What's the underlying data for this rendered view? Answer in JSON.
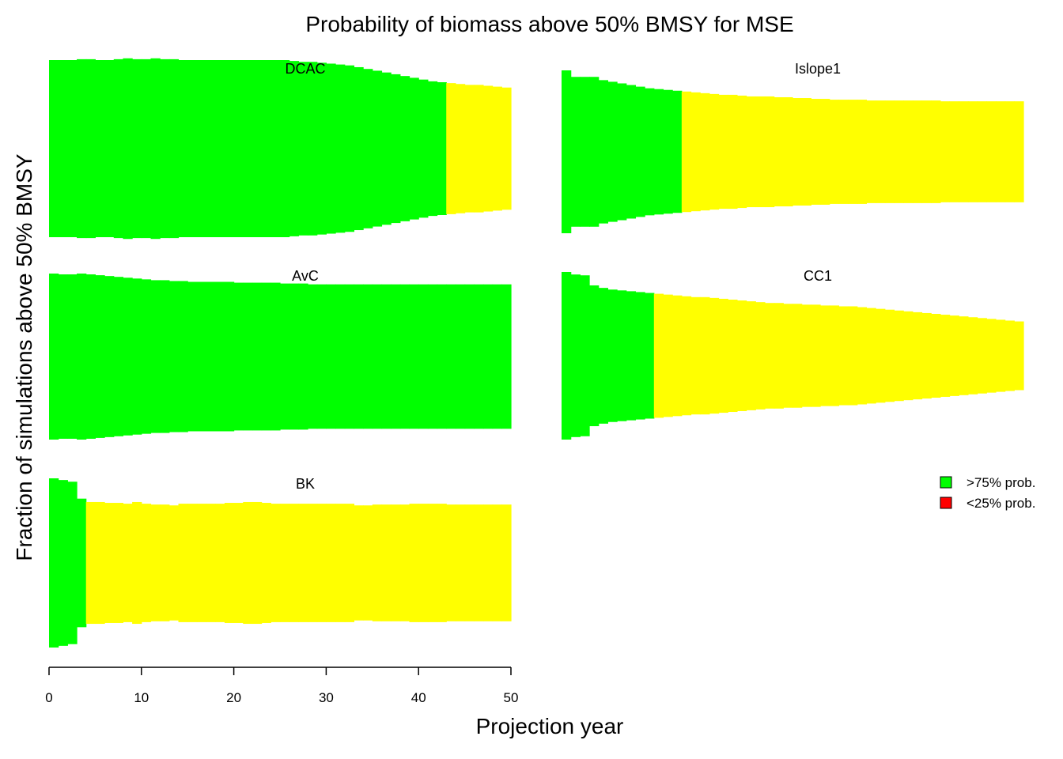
{
  "colors": {
    "high": "#00ff00",
    "mid": "#ffff00",
    "low": "#ff0000",
    "axis": "#000000"
  },
  "chart_data": {
    "type": "area",
    "title": "Probability of biomass above 50% BMSY for MSE",
    "xlabel": "Projection year",
    "ylabel": "Fraction of simulations above 50% BMSY",
    "xlim": [
      0,
      50
    ],
    "xticks": [
      0,
      10,
      20,
      30,
      40,
      50
    ],
    "legend": {
      "position": "right",
      "entries": [
        {
          "label": ">75% prob.",
          "color": "#00ff00"
        },
        {
          "label": "<25% prob.",
          "color": "#ff0000"
        }
      ]
    },
    "panels": [
      {
        "name": "DCAC",
        "years": 50,
        "fractions": [
          1.0,
          1.0,
          1.0,
          1.01,
          1.01,
          1.0,
          1.0,
          1.01,
          1.02,
          1.01,
          1.01,
          1.02,
          1.01,
          1.01,
          1.0,
          1.0,
          1.0,
          1.0,
          1.0,
          1.0,
          1.0,
          1.0,
          1.0,
          1.0,
          1.0,
          1.0,
          0.99,
          0.98,
          0.98,
          0.97,
          0.96,
          0.95,
          0.94,
          0.92,
          0.9,
          0.88,
          0.86,
          0.84,
          0.82,
          0.8,
          0.78,
          0.76,
          0.75,
          0.74,
          0.73,
          0.72,
          0.72,
          0.71,
          0.7,
          0.69
        ]
      },
      {
        "name": "Islope1",
        "years": 50,
        "fractions": [
          1.0,
          0.92,
          0.92,
          0.92,
          0.88,
          0.86,
          0.84,
          0.82,
          0.8,
          0.78,
          0.77,
          0.76,
          0.75,
          0.74,
          0.73,
          0.72,
          0.71,
          0.7,
          0.7,
          0.69,
          0.68,
          0.68,
          0.68,
          0.67,
          0.67,
          0.66,
          0.66,
          0.65,
          0.65,
          0.64,
          0.64,
          0.64,
          0.64,
          0.63,
          0.63,
          0.63,
          0.63,
          0.63,
          0.63,
          0.63,
          0.63,
          0.62,
          0.62,
          0.62,
          0.62,
          0.62,
          0.62,
          0.62,
          0.62,
          0.62
        ]
      },
      {
        "name": "AvC",
        "years": 50,
        "fractions": [
          1.0,
          0.99,
          0.99,
          1.0,
          0.99,
          0.98,
          0.97,
          0.96,
          0.95,
          0.94,
          0.93,
          0.92,
          0.92,
          0.91,
          0.91,
          0.9,
          0.9,
          0.9,
          0.9,
          0.9,
          0.89,
          0.89,
          0.89,
          0.89,
          0.89,
          0.88,
          0.88,
          0.88,
          0.87,
          0.87,
          0.87,
          0.87,
          0.87,
          0.87,
          0.87,
          0.87,
          0.87,
          0.87,
          0.87,
          0.87,
          0.87,
          0.87,
          0.87,
          0.87,
          0.87,
          0.87,
          0.87,
          0.87,
          0.87,
          0.87
        ]
      },
      {
        "name": "CC1",
        "years": 50,
        "fractions": [
          1.0,
          0.97,
          0.96,
          0.84,
          0.81,
          0.79,
          0.78,
          0.77,
          0.76,
          0.75,
          0.74,
          0.73,
          0.72,
          0.71,
          0.7,
          0.7,
          0.69,
          0.68,
          0.67,
          0.66,
          0.65,
          0.64,
          0.63,
          0.63,
          0.62,
          0.62,
          0.61,
          0.61,
          0.6,
          0.6,
          0.59,
          0.59,
          0.58,
          0.57,
          0.56,
          0.55,
          0.54,
          0.53,
          0.52,
          0.51,
          0.5,
          0.49,
          0.48,
          0.47,
          0.46,
          0.45,
          0.44,
          0.43,
          0.42,
          0.41
        ]
      },
      {
        "name": "BK",
        "years": 50,
        "fractions": [
          1.0,
          0.98,
          0.96,
          0.76,
          0.72,
          0.72,
          0.71,
          0.71,
          0.7,
          0.72,
          0.7,
          0.69,
          0.69,
          0.68,
          0.7,
          0.7,
          0.7,
          0.7,
          0.7,
          0.71,
          0.71,
          0.72,
          0.72,
          0.71,
          0.7,
          0.7,
          0.7,
          0.7,
          0.7,
          0.7,
          0.7,
          0.7,
          0.7,
          0.68,
          0.68,
          0.69,
          0.69,
          0.69,
          0.69,
          0.7,
          0.7,
          0.7,
          0.7,
          0.69,
          0.69,
          0.69,
          0.69,
          0.69,
          0.69,
          0.69
        ]
      }
    ]
  }
}
